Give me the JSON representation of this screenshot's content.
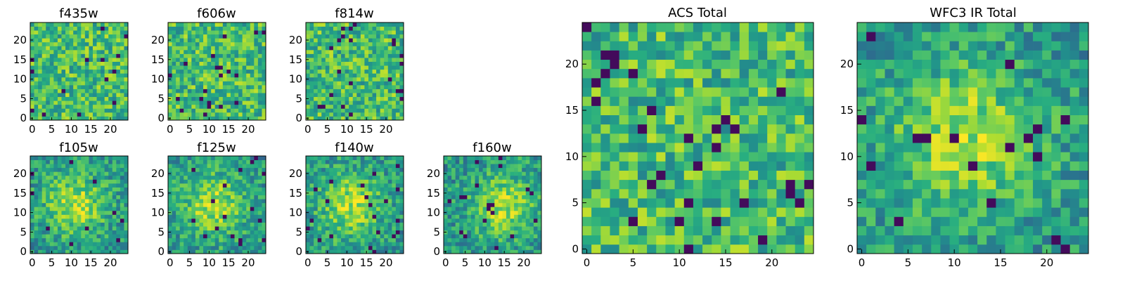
{
  "chart_data": [
    {
      "type": "heatmap",
      "title": "f435w",
      "grid_size": 25,
      "xticks": [
        "0",
        "5",
        "10",
        "15",
        "20"
      ],
      "yticks": [
        "0",
        "5",
        "10",
        "15",
        "20"
      ],
      "colormap": "viridis"
    },
    {
      "type": "heatmap",
      "title": "f606w",
      "grid_size": 25,
      "xticks": [
        "0",
        "5",
        "10",
        "15",
        "20"
      ],
      "yticks": [
        "0",
        "5",
        "10",
        "15",
        "20"
      ],
      "colormap": "viridis"
    },
    {
      "type": "heatmap",
      "title": "f814w",
      "grid_size": 25,
      "xticks": [
        "0",
        "5",
        "10",
        "15",
        "20"
      ],
      "yticks": [
        "0",
        "5",
        "10",
        "15",
        "20"
      ],
      "colormap": "viridis"
    },
    {
      "type": "heatmap",
      "title": "f105w",
      "grid_size": 25,
      "xticks": [
        "0",
        "5",
        "10",
        "15",
        "20"
      ],
      "yticks": [
        "0",
        "5",
        "10",
        "15",
        "20"
      ],
      "colormap": "viridis"
    },
    {
      "type": "heatmap",
      "title": "f125w",
      "grid_size": 25,
      "xticks": [
        "0",
        "5",
        "10",
        "15",
        "20"
      ],
      "yticks": [
        "0",
        "5",
        "10",
        "15",
        "20"
      ],
      "colormap": "viridis"
    },
    {
      "type": "heatmap",
      "title": "f140w",
      "grid_size": 25,
      "xticks": [
        "0",
        "5",
        "10",
        "15",
        "20"
      ],
      "yticks": [
        "0",
        "5",
        "10",
        "15",
        "20"
      ],
      "colormap": "viridis"
    },
    {
      "type": "heatmap",
      "title": "f160w",
      "grid_size": 25,
      "xticks": [
        "0",
        "5",
        "10",
        "15",
        "20"
      ],
      "yticks": [
        "0",
        "5",
        "10",
        "15",
        "20"
      ],
      "colormap": "viridis"
    },
    {
      "type": "heatmap",
      "title": "ACS Total",
      "grid_size": 25,
      "xticks": [
        "0",
        "5",
        "10",
        "15",
        "20"
      ],
      "yticks": [
        "0",
        "5",
        "10",
        "15",
        "20"
      ],
      "colormap": "viridis"
    },
    {
      "type": "heatmap",
      "title": "WFC3 IR Total",
      "grid_size": 25,
      "xticks": [
        "0",
        "5",
        "10",
        "15",
        "20"
      ],
      "yticks": [
        "0",
        "5",
        "10",
        "15",
        "20"
      ],
      "colormap": "viridis"
    }
  ]
}
